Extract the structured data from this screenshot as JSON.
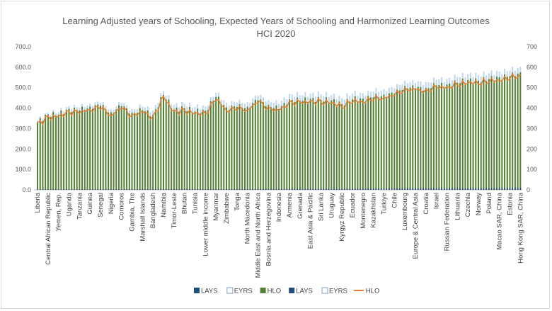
{
  "chart_data": {
    "type": "bar",
    "title": "Learning Adjusted years of Schooling, Expected Years of Schooling and Harmonized Learning Outcomes",
    "subtitle": "HCI 2020",
    "xlabel": "",
    "ylabel": "",
    "ylim": [
      0,
      700
    ],
    "yticks": [
      "0.0",
      "100.0",
      "200.0",
      "300.0",
      "400.0",
      "500.0",
      "600.0",
      "700.0"
    ],
    "yticks_right": [
      "0",
      "100",
      "200",
      "300",
      "400",
      "500",
      "600",
      "700"
    ],
    "grid": false,
    "legend_position": "bottom",
    "categories": [
      "Liberia",
      "Central African Republic",
      "Yemen, Rep.",
      "Uganda",
      "Tanzania",
      "Guinea",
      "Senegal",
      "Nigeria",
      "Comoros",
      "Gambia, The",
      "Marshall Islands",
      "Bangladesh",
      "Namibia",
      "Timor-Leste",
      "Bhutan",
      "Tunisia",
      "Lower middle income",
      "Myanmar",
      "Zimbabwe",
      "Tonga",
      "North Macedonia",
      "Middle East and North Africa",
      "Bosnia and Herzegovina",
      "Indonesia",
      "Armenia",
      "Grenada",
      "East Asia & Pacific",
      "Sri Lanka",
      "Uruguay",
      "Kyrgyz Republic",
      "Ecuador",
      "Montenegro",
      "Kazakhstan",
      "Turkiye",
      "Chile",
      "Luxembourg",
      "Europe & Central Asia",
      "Croatia",
      "Israel",
      "Russian Federation",
      "Lithuania",
      "Czechia",
      "Norway",
      "Poland",
      "Macao SAR, China",
      "Estonia",
      "Hong Kong SAR, China"
    ],
    "series": [
      {
        "name": "LAYS",
        "values": [
          2.6,
          2.9,
          3.2,
          3.4,
          3.6,
          3.6,
          3.8,
          3.6,
          4.0,
          3.8,
          3.9,
          4.1,
          4.3,
          4.2,
          4.4,
          4.6,
          4.3,
          4.6,
          4.7,
          4.8,
          5.0,
          5.0,
          5.3,
          5.5,
          5.8,
          5.9,
          6.2,
          6.5,
          6.4,
          6.5,
          6.8,
          7.1,
          7.8,
          8.0,
          8.7,
          9.0,
          9.1,
          9.5,
          10.0,
          10.0,
          10.4,
          10.7,
          10.6,
          11.0,
          11.9,
          12.0,
          12.2
        ]
      },
      {
        "name": "EYRS",
        "values": [
          4.2,
          3.9,
          5.6,
          6.4,
          7.0,
          6.9,
          6.9,
          7.2,
          7.5,
          8.0,
          8.5,
          10.2,
          9.1,
          10.3,
          10.2,
          10.6,
          9.8,
          9.5,
          11.1,
          10.6,
          10.5,
          10.6,
          11.5,
          12.4,
          12.5,
          12.8,
          12.1,
          13.3,
          12.5,
          13.6,
          13.6,
          12.9,
          13.4,
          12.8,
          13.1,
          12.6,
          13.0,
          13.3,
          13.4,
          13.0,
          13.5,
          13.5,
          13.2,
          13.4,
          13.4,
          13.4,
          13.4
        ]
      },
      {
        "name": "HLO",
        "values": [
          332,
          369,
          368,
          397,
          388,
          408,
          412,
          380,
          410,
          378,
          390,
          368,
          465,
          393,
          400,
          384,
          388,
          455,
          404,
          406,
          407,
          439,
          416,
          395,
          443,
          436,
          446,
          441,
          438,
          420,
          443,
          446,
          453,
          466,
          470,
          508,
          497,
          499,
          511,
          516,
          524,
          538,
          534,
          542,
          551,
          556,
          575
        ]
      },
      {
        "name": "HLO",
        "values": [
          332,
          369,
          368,
          397,
          388,
          408,
          412,
          380,
          410,
          378,
          390,
          368,
          465,
          393,
          400,
          384,
          388,
          455,
          404,
          406,
          407,
          439,
          416,
          395,
          443,
          436,
          446,
          441,
          438,
          420,
          443,
          446,
          453,
          466,
          470,
          508,
          497,
          499,
          511,
          516,
          524,
          538,
          534,
          542,
          551,
          556,
          575
        ]
      }
    ]
  },
  "legend": {
    "items": [
      {
        "label": "LAYS",
        "color": "#1f4e79",
        "kind": "box"
      },
      {
        "label": "EYRS",
        "color": "#ffffff",
        "kind": "box-outline"
      },
      {
        "label": "HLO",
        "color": "#548235",
        "kind": "box"
      },
      {
        "label": "LAYS",
        "color": "#1f4e79",
        "kind": "box"
      },
      {
        "label": "EYRS",
        "color": "#ffffff",
        "kind": "box-outline"
      },
      {
        "label": "HLO",
        "color": "#ed7d31",
        "kind": "line"
      }
    ]
  },
  "colors": {
    "hlo_bar": "#548235",
    "lays_bar": "#1f4e79",
    "eyrs_bar": "#bdd7ee",
    "hlo_line": "#ed7d31",
    "axis": "#bfbfbf"
  }
}
